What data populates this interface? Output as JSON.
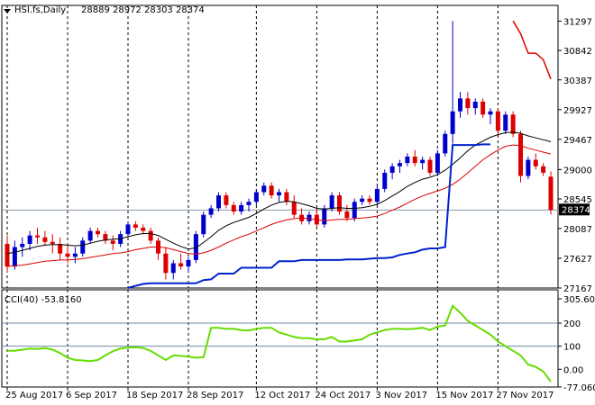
{
  "header": {
    "symbol": "HSI.fs,Daily",
    "ohlc": "28889 28972 28303 28374"
  },
  "chart_data": [
    {
      "type": "candlestick",
      "panel": "price",
      "ylim": [
        27167,
        31400
      ],
      "y_ticks": [
        "31297",
        "30842",
        "30387",
        "29927",
        "29467",
        "29000",
        "28545",
        "28087",
        "27627",
        "27167"
      ],
      "current_price": "28374",
      "x_labels": [
        "25 Aug 2017",
        "6 Sep 2017",
        "18 Sep 2017",
        "28 Sep 2017",
        "12 Oct 2017",
        "24 Oct 2017",
        "3 Nov 2017",
        "15 Nov 2017",
        "27 Nov 2017"
      ],
      "x_label_bars": [
        0,
        8,
        16,
        24,
        33,
        41,
        49,
        57,
        65
      ],
      "grid": true,
      "colors": {
        "up": "#0000cc",
        "down": "#dd0000",
        "ma_fast": "#000000",
        "ma_slow": "#dd0000",
        "ma_long": "#0022cc"
      },
      "candles": [
        [
          27850,
          27980,
          27400,
          27500
        ],
        [
          27500,
          27900,
          27450,
          27800
        ],
        [
          27800,
          27950,
          27650,
          27850
        ],
        [
          27850,
          28050,
          27750,
          27980
        ],
        [
          27980,
          28100,
          27850,
          27950
        ],
        [
          27950,
          28050,
          27820,
          27880
        ],
        [
          27880,
          28000,
          27700,
          27850
        ],
        [
          27850,
          27950,
          27600,
          27700
        ],
        [
          27700,
          27850,
          27550,
          27650
        ],
        [
          27650,
          27800,
          27550,
          27700
        ],
        [
          27700,
          27950,
          27650,
          27900
        ],
        [
          27900,
          28100,
          27850,
          28050
        ],
        [
          28050,
          28100,
          27950,
          28000
        ],
        [
          28000,
          28050,
          27850,
          27900
        ],
        [
          27900,
          27980,
          27750,
          27850
        ],
        [
          27850,
          28050,
          27800,
          28000
        ],
        [
          28000,
          28200,
          27950,
          28150
        ],
        [
          28150,
          28200,
          28050,
          28100
        ],
        [
          28100,
          28150,
          28000,
          28050
        ],
        [
          28050,
          28100,
          27850,
          27900
        ],
        [
          27900,
          27950,
          27600,
          27700
        ],
        [
          27700,
          27800,
          27300,
          27400
        ],
        [
          27400,
          27600,
          27300,
          27550
        ],
        [
          27550,
          27700,
          27450,
          27500
        ],
        [
          27500,
          27650,
          27400,
          27600
        ],
        [
          27600,
          28050,
          27550,
          28000
        ],
        [
          28000,
          28350,
          27950,
          28300
        ],
        [
          28300,
          28450,
          28250,
          28400
        ],
        [
          28400,
          28650,
          28350,
          28600
        ],
        [
          28600,
          28650,
          28400,
          28450
        ],
        [
          28450,
          28500,
          28300,
          28350
        ],
        [
          28350,
          28500,
          28300,
          28450
        ],
        [
          28450,
          28550,
          28350,
          28500
        ],
        [
          28500,
          28700,
          28450,
          28650
        ],
        [
          28650,
          28800,
          28600,
          28750
        ],
        [
          28750,
          28800,
          28550,
          28600
        ],
        [
          28600,
          28700,
          28500,
          28650
        ],
        [
          28650,
          28700,
          28450,
          28500
        ],
        [
          28500,
          28600,
          28250,
          28300
        ],
        [
          28300,
          28400,
          28150,
          28200
        ],
        [
          28200,
          28350,
          28150,
          28300
        ],
        [
          28300,
          28400,
          28100,
          28150
        ],
        [
          28150,
          28450,
          28100,
          28400
        ],
        [
          28400,
          28650,
          28350,
          28600
        ],
        [
          28600,
          28650,
          28300,
          28350
        ],
        [
          28350,
          28450,
          28200,
          28250
        ],
        [
          28250,
          28550,
          28200,
          28500
        ],
        [
          28500,
          28600,
          28450,
          28550
        ],
        [
          28550,
          28600,
          28450,
          28500
        ],
        [
          28500,
          28750,
          28450,
          28700
        ],
        [
          28700,
          29000,
          28650,
          28950
        ],
        [
          28950,
          29100,
          28850,
          29050
        ],
        [
          29050,
          29150,
          28950,
          29100
        ],
        [
          29100,
          29250,
          29050,
          29200
        ],
        [
          29200,
          29300,
          29050,
          29100
        ],
        [
          29100,
          29200,
          29000,
          29150
        ],
        [
          29150,
          29200,
          28900,
          28950
        ],
        [
          28950,
          29300,
          28900,
          29250
        ],
        [
          29250,
          29600,
          29200,
          29550
        ],
        [
          29550,
          31297,
          29400,
          29900
        ],
        [
          29900,
          30200,
          29800,
          30100
        ],
        [
          30100,
          30200,
          29850,
          29950
        ],
        [
          29950,
          30100,
          29850,
          30050
        ],
        [
          30050,
          30100,
          29800,
          29850
        ],
        [
          29850,
          29950,
          29700,
          29900
        ],
        [
          29900,
          29950,
          29500,
          29600
        ],
        [
          29600,
          29900,
          29550,
          29850
        ],
        [
          29850,
          29900,
          29500,
          29550
        ],
        [
          29550,
          29600,
          28800,
          28900
        ],
        [
          28900,
          29200,
          28850,
          29150
        ],
        [
          29150,
          29250,
          29000,
          29050
        ],
        [
          29050,
          29100,
          28900,
          28950
        ],
        [
          28889,
          28972,
          28303,
          28374
        ]
      ],
      "ma_fast": [
        27700,
        27720,
        27750,
        27780,
        27810,
        27830,
        27840,
        27840,
        27830,
        27820,
        27830,
        27860,
        27890,
        27910,
        27920,
        27930,
        27960,
        27990,
        28010,
        28010,
        27980,
        27920,
        27860,
        27810,
        27770,
        27790,
        27870,
        27960,
        28060,
        28130,
        28180,
        28220,
        28260,
        28320,
        28390,
        28450,
        28490,
        28510,
        28500,
        28470,
        28440,
        28400,
        28390,
        28400,
        28410,
        28400,
        28400,
        28410,
        28430,
        28460,
        28520,
        28590,
        28660,
        28740,
        28800,
        28850,
        28880,
        28920,
        28990,
        29080,
        29180,
        29290,
        29380,
        29440,
        29500,
        29540,
        29570,
        29580,
        29560,
        29520,
        29490,
        29460,
        29430
      ],
      "ma_slow": [
        27500,
        27510,
        27520,
        27540,
        27560,
        27580,
        27590,
        27600,
        27600,
        27610,
        27620,
        27640,
        27660,
        27680,
        27700,
        27710,
        27730,
        27760,
        27780,
        27800,
        27800,
        27790,
        27760,
        27730,
        27700,
        27690,
        27710,
        27750,
        27800,
        27860,
        27910,
        27960,
        28000,
        28050,
        28100,
        28150,
        28190,
        28220,
        28240,
        28250,
        28240,
        28220,
        28210,
        28220,
        28230,
        28230,
        28240,
        28250,
        28260,
        28280,
        28320,
        28370,
        28420,
        28480,
        28540,
        28590,
        28630,
        28670,
        28710,
        28770,
        28850,
        28950,
        29050,
        29150,
        29230,
        29300,
        29360,
        29380,
        29370,
        29330,
        29300,
        29270,
        29240
      ],
      "ma_long": [
        null,
        null,
        null,
        null,
        null,
        null,
        null,
        null,
        null,
        null,
        null,
        null,
        null,
        null,
        null,
        null,
        27167,
        27200,
        27230,
        27240,
        27240,
        27240,
        27240,
        27240,
        27240,
        27240,
        27290,
        27300,
        27390,
        27390,
        27390,
        27480,
        27480,
        27480,
        27480,
        27480,
        27580,
        27580,
        27580,
        27600,
        27600,
        27600,
        27600,
        27600,
        27600,
        27610,
        27610,
        27610,
        27620,
        27630,
        27630,
        27640,
        27680,
        27700,
        27720,
        27760,
        27780,
        27780,
        27800,
        29380,
        29380,
        29380,
        29380,
        29390,
        29390,
        null,
        null,
        null,
        null,
        null,
        null,
        null,
        null
      ],
      "ma_long_high": [
        null,
        null,
        null,
        null,
        null,
        null,
        null,
        null,
        null,
        null,
        null,
        null,
        null,
        null,
        null,
        null,
        null,
        null,
        null,
        null,
        null,
        null,
        null,
        null,
        null,
        null,
        null,
        null,
        null,
        null,
        null,
        null,
        null,
        null,
        null,
        null,
        null,
        null,
        null,
        null,
        null,
        null,
        null,
        null,
        null,
        null,
        null,
        null,
        null,
        null,
        null,
        null,
        null,
        null,
        null,
        null,
        null,
        null,
        null,
        null,
        null,
        null,
        null,
        null,
        null,
        null,
        null,
        31300,
        31100,
        30800,
        30800,
        30700,
        30400
      ]
    },
    {
      "type": "line",
      "panel": "oscillator",
      "title": "CCI(40) -53.8160",
      "ylim": [
        -77.0604,
        305.6036
      ],
      "y_ticks": [
        "305.6036",
        "200",
        "100",
        "0.00",
        "-77.0604"
      ],
      "levels": [
        200,
        100
      ],
      "color": "#66dd00",
      "values": [
        80,
        80,
        85,
        90,
        88,
        92,
        85,
        70,
        50,
        40,
        38,
        35,
        40,
        60,
        78,
        90,
        94,
        95,
        92,
        80,
        60,
        40,
        60,
        58,
        55,
        50,
        52,
        180,
        180,
        175,
        175,
        170,
        168,
        175,
        180,
        180,
        160,
        150,
        140,
        135,
        135,
        130,
        130,
        140,
        120,
        120,
        125,
        130,
        150,
        160,
        170,
        175,
        175,
        174,
        176,
        180,
        170,
        185,
        190,
        275,
        245,
        210,
        190,
        170,
        150,
        120,
        100,
        80,
        60,
        20,
        10,
        -10,
        -53.8
      ]
    }
  ]
}
